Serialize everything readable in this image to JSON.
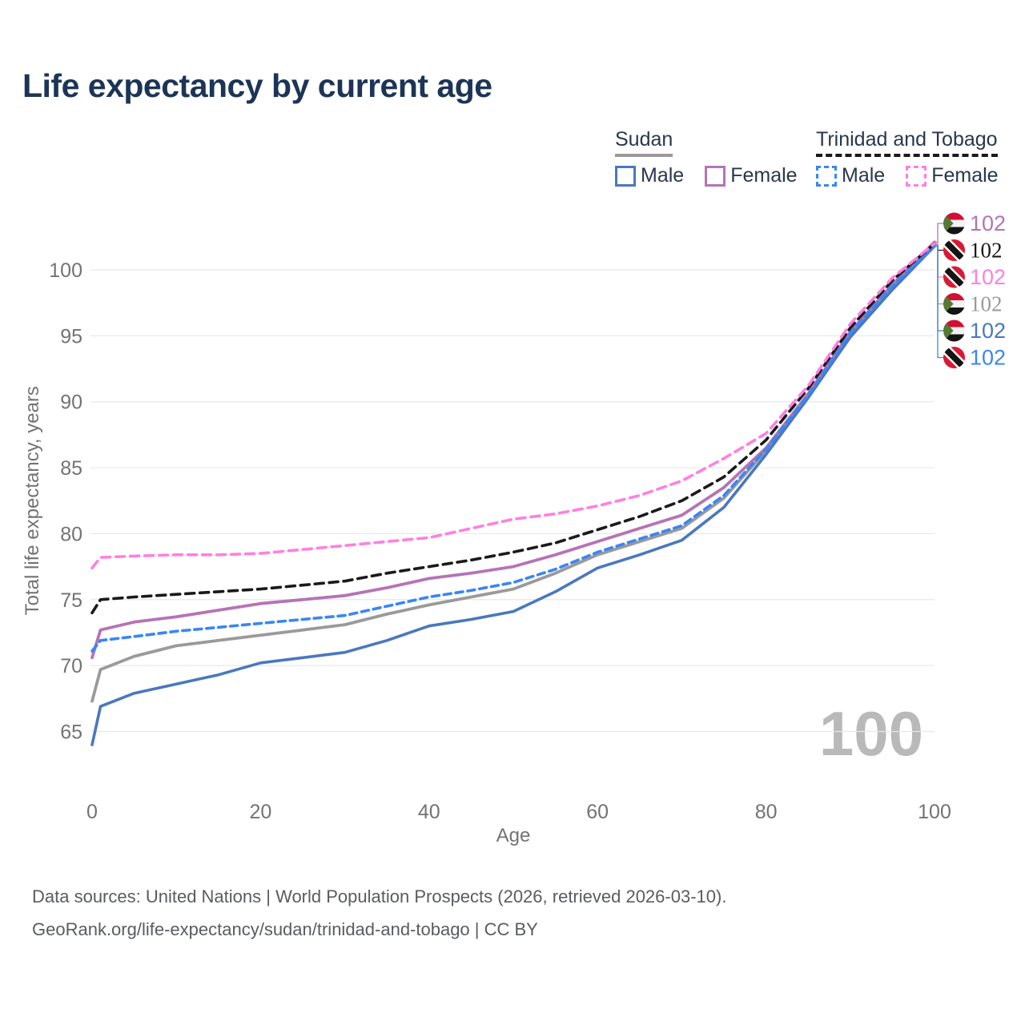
{
  "title": "Life expectancy by current age",
  "legend": {
    "groups": [
      {
        "label": "Sudan",
        "line_style": "solid",
        "underline_color": "#9a9a9a",
        "items": [
          {
            "label": "Male",
            "color": "#4a78be"
          },
          {
            "label": "Female",
            "color": "#b574b5"
          }
        ]
      },
      {
        "label": "Trinidad and Tobago",
        "line_style": "dashed",
        "underline_color": "#1a1a1a",
        "items": [
          {
            "label": "Male",
            "color": "#3a86f4"
          },
          {
            "label": "Female",
            "color": "#ff80df"
          }
        ]
      }
    ]
  },
  "watermark": "100",
  "footer": {
    "line1": "Data sources: United Nations | World Population Prospects (2026, retrieved 2026-03-10).",
    "line2": "GeoRank.org/life-expectancy/sudan/trinidad-and-tobago | CC BY"
  },
  "chart_data": {
    "type": "line",
    "title": "Life expectancy by current age",
    "xlabel": "Age",
    "ylabel": "Total life expectancy, years",
    "xlim": [
      0,
      100
    ],
    "ylim": [
      63,
      103
    ],
    "x_ticks": [
      0,
      20,
      40,
      60,
      80,
      100
    ],
    "y_ticks": [
      65,
      70,
      75,
      80,
      85,
      90,
      95,
      100
    ],
    "grid": "horizontal",
    "grid_color": "#e8e8e8",
    "axis_text_color": "#737373",
    "watermark_color": "#b9b9b9",
    "x": [
      0,
      1,
      5,
      10,
      15,
      20,
      25,
      30,
      35,
      40,
      45,
      50,
      55,
      60,
      65,
      70,
      75,
      80,
      85,
      90,
      95,
      100
    ],
    "series": [
      {
        "id": "sudan_both",
        "country": "Sudan",
        "sex": "Both sexes",
        "style": "solid",
        "color": "#9a9a9a",
        "width": 3.8,
        "values": [
          67.3,
          69.7,
          70.7,
          71.5,
          71.9,
          72.3,
          72.7,
          73.1,
          73.9,
          74.6,
          75.2,
          75.8,
          77.0,
          78.4,
          79.4,
          80.4,
          82.7,
          86.3,
          90.4,
          95.1,
          98.7,
          101.9
        ]
      },
      {
        "id": "sudan_male",
        "country": "Sudan",
        "sex": "Male",
        "style": "solid",
        "color": "#4a78be",
        "width": 3.6,
        "values": [
          64.0,
          66.9,
          67.9,
          68.6,
          69.3,
          70.2,
          70.6,
          71.0,
          71.9,
          73.0,
          73.5,
          74.1,
          75.6,
          77.4,
          78.4,
          79.5,
          82.0,
          86.0,
          90.3,
          94.9,
          98.5,
          101.8
        ]
      },
      {
        "id": "sudan_female",
        "country": "Sudan",
        "sex": "Female",
        "style": "solid",
        "color": "#b574b5",
        "width": 3.8,
        "values": [
          70.6,
          72.7,
          73.3,
          73.7,
          74.2,
          74.7,
          75.0,
          75.3,
          75.9,
          76.6,
          77.0,
          77.5,
          78.4,
          79.4,
          80.4,
          81.4,
          83.5,
          86.5,
          90.6,
          95.3,
          98.9,
          102.1
        ]
      },
      {
        "id": "tt_male",
        "country": "Trinidad and Tobago",
        "sex": "Male",
        "style": "dashed",
        "color": "#3a86f4",
        "width": 3.6,
        "dash": "9 6",
        "values": [
          71.1,
          71.9,
          72.2,
          72.6,
          72.9,
          73.2,
          73.5,
          73.8,
          74.5,
          75.2,
          75.7,
          76.3,
          77.3,
          78.6,
          79.6,
          80.6,
          82.9,
          86.4,
          90.5,
          95.2,
          98.8,
          101.8
        ]
      },
      {
        "id": "tt_both",
        "country": "Trinidad and Tobago",
        "sex": "Both sexes",
        "style": "dashed",
        "color": "#1a1a1a",
        "width": 3.6,
        "dash": "11 7",
        "values": [
          74.0,
          75.0,
          75.2,
          75.4,
          75.6,
          75.8,
          76.1,
          76.4,
          77.0,
          77.5,
          78.0,
          78.6,
          79.3,
          80.3,
          81.3,
          82.5,
          84.3,
          87.1,
          91.0,
          95.6,
          99.2,
          102.0
        ]
      },
      {
        "id": "tt_female",
        "country": "Trinidad and Tobago",
        "sex": "Female",
        "style": "dashed",
        "color": "#ff80df",
        "width": 3.6,
        "dash": "11 7",
        "values": [
          77.4,
          78.2,
          78.3,
          78.4,
          78.4,
          78.5,
          78.8,
          79.1,
          79.4,
          79.7,
          80.4,
          81.1,
          81.5,
          82.1,
          82.9,
          84.0,
          85.7,
          87.6,
          91.2,
          95.9,
          99.4,
          102.0
        ]
      }
    ],
    "end_labels": [
      {
        "series": "sudan_female",
        "flag": "sudan",
        "value": "102",
        "color": "#b574b5",
        "serif": false
      },
      {
        "series": "tt_both",
        "flag": "trinidad-and-tobago",
        "value": "102",
        "color": "#1a1a1a",
        "serif": true
      },
      {
        "series": "tt_female",
        "flag": "trinidad-and-tobago",
        "value": "102",
        "color": "#ff80df",
        "serif": false
      },
      {
        "series": "sudan_both",
        "flag": "sudan",
        "value": "102",
        "color": "#9a9a9a",
        "serif": true
      },
      {
        "series": "sudan_male",
        "flag": "sudan",
        "value": "102",
        "color": "#4a78be",
        "serif": false
      },
      {
        "series": "tt_male",
        "flag": "trinidad-and-tobago",
        "value": "102",
        "color": "#3a86f4",
        "serif": false
      }
    ]
  }
}
